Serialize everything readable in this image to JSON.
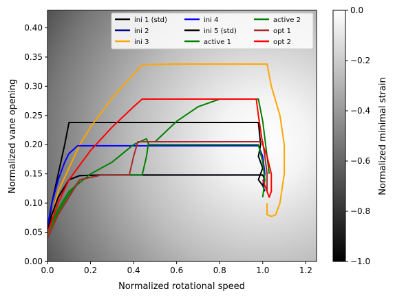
{
  "chart_data": {
    "type": "line",
    "xlabel": "Normalized rotational speed",
    "ylabel": "Normalized vane opening",
    "xlim": [
      0.0,
      1.25
    ],
    "ylim": [
      0.0,
      0.43
    ],
    "x_ticks": [
      "0.0",
      "0.2",
      "0.4",
      "0.6",
      "0.8",
      "1.0",
      "1.2"
    ],
    "y_ticks": [
      "0.00",
      "0.05",
      "0.10",
      "0.15",
      "0.20",
      "0.25",
      "0.30",
      "0.35",
      "0.40"
    ],
    "grid": false,
    "legend_position": "top-right",
    "background": "heatmap gradient of normalized minimal strain (darkest top-left, lightest near x=1.0, y=0.2)",
    "colorbar": {
      "label": "Normalized minimal strain",
      "range": [
        -1.0,
        0.0
      ],
      "ticks": [
        "0.0",
        "−0.2",
        "−0.4",
        "−0.6",
        "−0.8",
        "−1.0"
      ],
      "colormap": "gray"
    },
    "series": [
      {
        "name": "ini 1 (std)",
        "color": "#000000",
        "x": [
          0.0,
          0.02,
          0.05,
          0.08,
          0.1,
          0.3,
          0.6,
          0.98,
          0.99,
          0.98,
          1.0,
          0.98,
          1.0
        ],
        "y": [
          0.05,
          0.1,
          0.15,
          0.2,
          0.238,
          0.238,
          0.238,
          0.238,
          0.2,
          0.18,
          0.16,
          0.14,
          0.13
        ]
      },
      {
        "name": "ini 2",
        "color": "#00008b",
        "x": [
          0.0,
          0.02,
          0.05,
          0.1,
          0.15,
          0.25,
          0.4,
          0.7,
          1.0,
          1.01,
          1.0,
          1.01
        ],
        "y": [
          0.05,
          0.08,
          0.11,
          0.14,
          0.147,
          0.148,
          0.148,
          0.148,
          0.148,
          0.14,
          0.13,
          0.12
        ]
      },
      {
        "name": "ini 3",
        "color": "#ffa500",
        "x": [
          0.0,
          0.05,
          0.1,
          0.15,
          0.2,
          0.3,
          0.44,
          0.6,
          0.8,
          1.02,
          1.04,
          1.08,
          1.1,
          1.1,
          1.08,
          1.06,
          1.04,
          1.02,
          1.02
        ],
        "y": [
          0.05,
          0.12,
          0.16,
          0.2,
          0.23,
          0.28,
          0.337,
          0.338,
          0.338,
          0.338,
          0.3,
          0.25,
          0.2,
          0.15,
          0.1,
          0.08,
          0.077,
          0.08,
          0.1
        ]
      },
      {
        "name": "ini 4",
        "color": "#0000ff",
        "x": [
          0.0,
          0.02,
          0.05,
          0.08,
          0.1,
          0.14,
          0.4,
          0.7,
          0.98,
          1.0,
          1.01,
          1.0
        ],
        "y": [
          0.06,
          0.1,
          0.14,
          0.17,
          0.185,
          0.198,
          0.198,
          0.198,
          0.198,
          0.18,
          0.15,
          0.13
        ]
      },
      {
        "name": "ini 5 (std)",
        "color": "#000000",
        "x": [
          0.0,
          0.02,
          0.05,
          0.1,
          0.15,
          0.25,
          0.4,
          0.7,
          1.0,
          1.01,
          1.0
        ],
        "y": [
          0.05,
          0.08,
          0.11,
          0.14,
          0.147,
          0.148,
          0.148,
          0.148,
          0.148,
          0.14,
          0.13
        ]
      },
      {
        "name": "active 1",
        "color": "#008000",
        "x": [
          0.0,
          0.05,
          0.1,
          0.2,
          0.3,
          0.4,
          0.46,
          0.47,
          0.5,
          0.7,
          0.98,
          1.0,
          1.01,
          1.0
        ],
        "y": [
          0.05,
          0.09,
          0.12,
          0.15,
          0.17,
          0.2,
          0.21,
          0.2,
          0.2,
          0.2,
          0.2,
          0.17,
          0.14,
          0.11
        ]
      },
      {
        "name": "active 2",
        "color": "#008000",
        "x": [
          0.0,
          0.05,
          0.1,
          0.15,
          0.25,
          0.35,
          0.44,
          0.46,
          0.47,
          0.5,
          0.6,
          0.7,
          0.8,
          0.98,
          1.0,
          1.02,
          1.03
        ],
        "y": [
          0.04,
          0.085,
          0.115,
          0.14,
          0.148,
          0.148,
          0.148,
          0.18,
          0.205,
          0.205,
          0.24,
          0.265,
          0.278,
          0.278,
          0.24,
          0.18,
          0.15
        ]
      },
      {
        "name": "opt 1",
        "color": "#a52a2a",
        "x": [
          0.0,
          0.05,
          0.1,
          0.15,
          0.25,
          0.38,
          0.4,
          0.42,
          0.45,
          0.6,
          0.8,
          1.0,
          1.01,
          1.02,
          1.02
        ],
        "y": [
          0.04,
          0.08,
          0.11,
          0.14,
          0.148,
          0.148,
          0.18,
          0.205,
          0.205,
          0.205,
          0.205,
          0.205,
          0.18,
          0.15,
          0.12
        ]
      },
      {
        "name": "opt 2",
        "color": "#ff0000",
        "x": [
          0.0,
          0.05,
          0.1,
          0.2,
          0.3,
          0.4,
          0.44,
          0.6,
          0.8,
          0.97,
          0.98,
          1.0,
          1.02,
          1.04,
          1.04,
          1.03,
          1.02,
          1.0
        ],
        "y": [
          0.05,
          0.1,
          0.14,
          0.19,
          0.23,
          0.265,
          0.278,
          0.278,
          0.278,
          0.278,
          0.25,
          0.2,
          0.18,
          0.15,
          0.12,
          0.11,
          0.12,
          0.14
        ]
      }
    ]
  }
}
